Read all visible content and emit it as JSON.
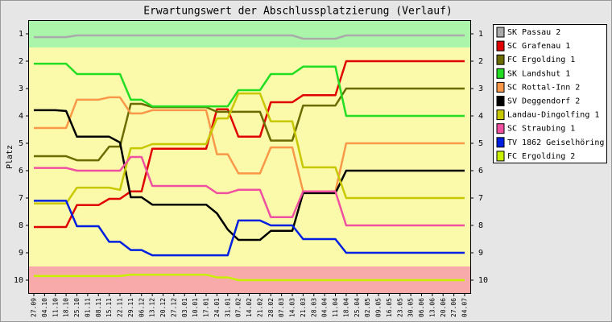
{
  "chart_data": {
    "type": "line",
    "title": "Erwartungswert der Abschlussplatzierung (Verlauf)",
    "y_label": "Platz",
    "categories": [
      "27.09",
      "04.10",
      "11.10",
      "18.10",
      "25.10",
      "01.11",
      "08.11",
      "15.11",
      "22.11",
      "29.11",
      "06.12",
      "13.12",
      "20.12",
      "27.12",
      "03.01",
      "10.01",
      "17.01",
      "24.01",
      "31.01",
      "07.02",
      "14.02",
      "21.02",
      "28.02",
      "07.03",
      "14.03",
      "21.03",
      "28.03",
      "04.04",
      "11.04",
      "18.04",
      "25.04",
      "02.05",
      "09.05",
      "16.05",
      "23.05",
      "30.05",
      "06.06",
      "13.06",
      "20.06",
      "27.06",
      "04.07"
    ],
    "ylim": [
      10.5,
      0.5
    ],
    "yticks": [
      1,
      2,
      3,
      4,
      5,
      6,
      7,
      8,
      9,
      10
    ],
    "y2ticks": [
      1,
      2,
      3,
      4,
      5,
      6,
      7,
      8,
      9,
      10
    ],
    "zones": [
      {
        "from": 0.5,
        "to": 1.5,
        "color": "#aaf5aa"
      },
      {
        "from": 1.5,
        "to": 9.5,
        "color": "#fafaaa"
      },
      {
        "from": 9.5,
        "to": 10.5,
        "color": "#f8aaaa"
      }
    ],
    "legend": "right",
    "series": [
      {
        "name": "SK Passau 2",
        "color": "#aaaaaa",
        "values": [
          1.12,
          1.12,
          1.12,
          1.12,
          1.06,
          1.06,
          1.06,
          1.06,
          1.06,
          1.06,
          1.06,
          1.06,
          1.06,
          1.06,
          1.06,
          1.06,
          1.06,
          1.06,
          1.06,
          1.06,
          1.06,
          1.06,
          1.06,
          1.06,
          1.06,
          1.18,
          1.18,
          1.18,
          1.18,
          1.06,
          1.06,
          1.06,
          1.06,
          1.06,
          1.06,
          1.06,
          1.06,
          1.06,
          1.06,
          1.06,
          1.06
        ]
      },
      {
        "name": "SC Grafenau 1",
        "color": "#e00000",
        "values": [
          8.06,
          8.06,
          8.06,
          8.06,
          7.26,
          7.26,
          7.26,
          7.03,
          7.03,
          6.76,
          6.76,
          5.2,
          5.2,
          5.2,
          5.2,
          5.2,
          5.2,
          3.76,
          3.76,
          4.76,
          4.76,
          4.76,
          3.5,
          3.5,
          3.5,
          3.24,
          3.24,
          3.24,
          3.24,
          2.0,
          2.0,
          2.0,
          2.0,
          2.0,
          2.0,
          2.0,
          2.0,
          2.0,
          2.0,
          2.0,
          2.0
        ]
      },
      {
        "name": "FC Ergolding 1",
        "color": "#6b6b00",
        "values": [
          5.47,
          5.47,
          5.47,
          5.47,
          5.62,
          5.62,
          5.62,
          5.12,
          5.12,
          3.56,
          3.56,
          3.68,
          3.68,
          3.68,
          3.68,
          3.68,
          3.68,
          3.85,
          3.85,
          3.85,
          3.85,
          3.85,
          4.9,
          4.9,
          4.9,
          3.62,
          3.62,
          3.62,
          3.62,
          3.0,
          3.0,
          3.0,
          3.0,
          3.0,
          3.0,
          3.0,
          3.0,
          3.0,
          3.0,
          3.0,
          3.0
        ]
      },
      {
        "name": "SK Landshut 1",
        "color": "#22dd22",
        "values": [
          2.09,
          2.09,
          2.09,
          2.09,
          2.47,
          2.47,
          2.47,
          2.47,
          2.47,
          3.41,
          3.41,
          3.65,
          3.65,
          3.65,
          3.65,
          3.65,
          3.65,
          3.65,
          3.65,
          3.06,
          3.06,
          3.06,
          2.47,
          2.47,
          2.47,
          2.2,
          2.2,
          2.2,
          2.2,
          4.0,
          4.0,
          4.0,
          4.0,
          4.0,
          4.0,
          4.0,
          4.0,
          4.0,
          4.0,
          4.0,
          4.0
        ]
      },
      {
        "name": "SC Rottal-Inn 2",
        "color": "#f89848",
        "values": [
          4.44,
          4.44,
          4.44,
          4.44,
          3.41,
          3.41,
          3.41,
          3.32,
          3.32,
          3.91,
          3.91,
          3.79,
          3.79,
          3.79,
          3.79,
          3.79,
          3.79,
          5.4,
          5.4,
          6.1,
          6.1,
          6.1,
          5.15,
          5.15,
          5.15,
          6.76,
          6.76,
          6.76,
          6.76,
          5.0,
          5.0,
          5.0,
          5.0,
          5.0,
          5.0,
          5.0,
          5.0,
          5.0,
          5.0,
          5.0,
          5.0
        ]
      },
      {
        "name": "SV Deggendorf 2",
        "color": "#000000",
        "values": [
          3.79,
          3.79,
          3.79,
          3.82,
          4.76,
          4.76,
          4.76,
          4.76,
          4.97,
          6.97,
          6.97,
          7.24,
          7.24,
          7.24,
          7.24,
          7.24,
          7.24,
          7.56,
          8.15,
          8.53,
          8.53,
          8.53,
          8.2,
          8.2,
          8.2,
          6.82,
          6.82,
          6.82,
          6.82,
          6.0,
          6.0,
          6.0,
          6.0,
          6.0,
          6.0,
          6.0,
          6.0,
          6.0,
          6.0,
          6.0,
          6.0
        ]
      },
      {
        "name": "Landau-Dingolfing 1",
        "color": "#c8c800",
        "values": [
          7.2,
          7.2,
          7.2,
          7.2,
          6.62,
          6.62,
          6.62,
          6.62,
          6.7,
          5.18,
          5.18,
          5.03,
          5.03,
          5.03,
          5.03,
          5.03,
          5.03,
          4.09,
          4.09,
          3.18,
          3.18,
          3.18,
          4.2,
          4.2,
          4.2,
          5.88,
          5.88,
          5.88,
          5.88,
          7.0,
          7.0,
          7.0,
          7.0,
          7.0,
          7.0,
          7.0,
          7.0,
          7.0,
          7.0,
          7.0,
          7.0
        ]
      },
      {
        "name": "SC Straubing 1",
        "color": "#f050a0",
        "values": [
          5.9,
          5.9,
          5.9,
          5.9,
          6.0,
          6.0,
          6.0,
          6.0,
          6.0,
          5.5,
          5.5,
          6.56,
          6.56,
          6.56,
          6.56,
          6.56,
          6.56,
          6.82,
          6.82,
          6.7,
          6.7,
          6.7,
          7.7,
          7.7,
          7.7,
          6.76,
          6.76,
          6.76,
          6.76,
          8.0,
          8.0,
          8.0,
          8.0,
          8.0,
          8.0,
          8.0,
          8.0,
          8.0,
          8.0,
          8.0,
          8.0
        ]
      },
      {
        "name": "TV 1862 Geiselhöring",
        "color": "#0020e0",
        "values": [
          7.1,
          7.1,
          7.1,
          7.1,
          8.03,
          8.03,
          8.03,
          8.6,
          8.6,
          8.9,
          8.9,
          9.09,
          9.09,
          9.09,
          9.09,
          9.09,
          9.09,
          9.09,
          9.09,
          7.82,
          7.82,
          7.82,
          8.0,
          8.0,
          8.0,
          8.5,
          8.5,
          8.5,
          8.5,
          9.0,
          9.0,
          9.0,
          9.0,
          9.0,
          9.0,
          9.0,
          9.0,
          9.0,
          9.0,
          9.0,
          9.0
        ]
      },
      {
        "name": "FC Ergolding 2",
        "color": "#c8f000",
        "values": [
          9.85,
          9.85,
          9.85,
          9.85,
          9.85,
          9.85,
          9.85,
          9.85,
          9.85,
          9.8,
          9.8,
          9.8,
          9.8,
          9.8,
          9.8,
          9.8,
          9.8,
          9.9,
          9.9,
          10.0,
          10.0,
          10.0,
          10.0,
          10.0,
          10.0,
          10.0,
          10.0,
          10.0,
          10.0,
          10.0,
          10.0,
          10.0,
          10.0,
          10.0,
          10.0,
          10.0,
          10.0,
          10.0,
          10.0,
          10.0,
          10.0
        ]
      }
    ]
  }
}
